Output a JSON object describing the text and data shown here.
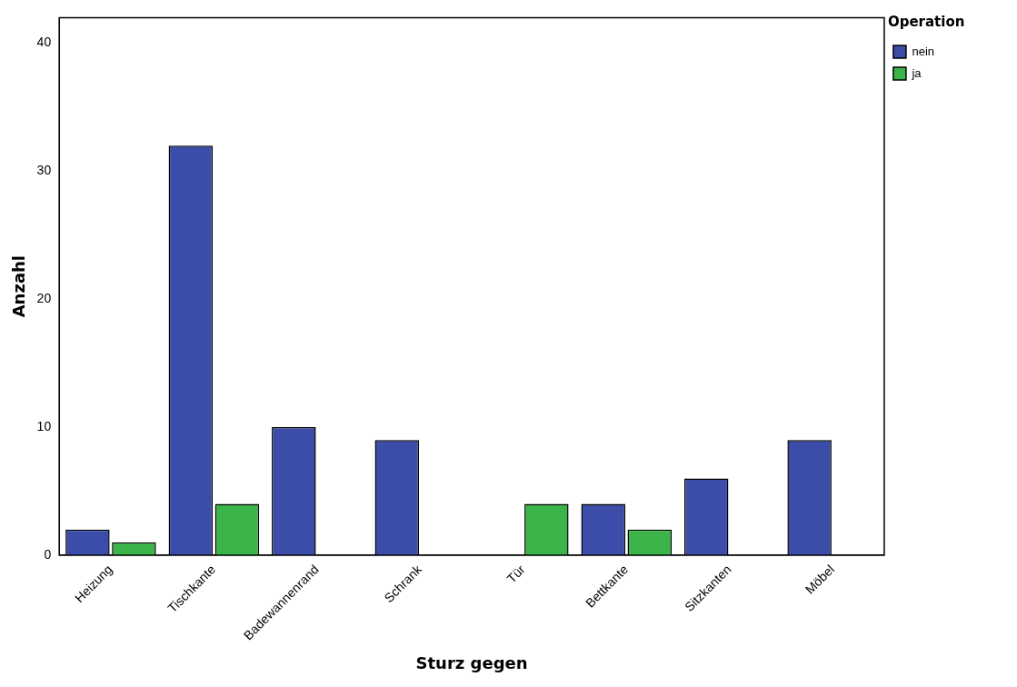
{
  "chart_data": {
    "type": "bar",
    "xlabel": "Sturz gegen",
    "ylabel": "Anzahl",
    "legend_title": "Operation",
    "categories": [
      "Heizung",
      "Tischkante",
      "Badewannenrand",
      "Schrank",
      "Tür",
      "Bettkante",
      "Sitzkanten",
      "Möbel"
    ],
    "series": [
      {
        "name": "nein",
        "color": "#3b4da8",
        "values": [
          2,
          32,
          10,
          9,
          0,
          4,
          6,
          9
        ]
      },
      {
        "name": "ja",
        "color": "#3bb449",
        "values": [
          1,
          4,
          0,
          0,
          4,
          2,
          0,
          0
        ]
      }
    ],
    "ylim": [
      0,
      42
    ],
    "yticks": [
      0,
      10,
      20,
      30,
      40
    ],
    "grid": false,
    "legend": "top right"
  }
}
